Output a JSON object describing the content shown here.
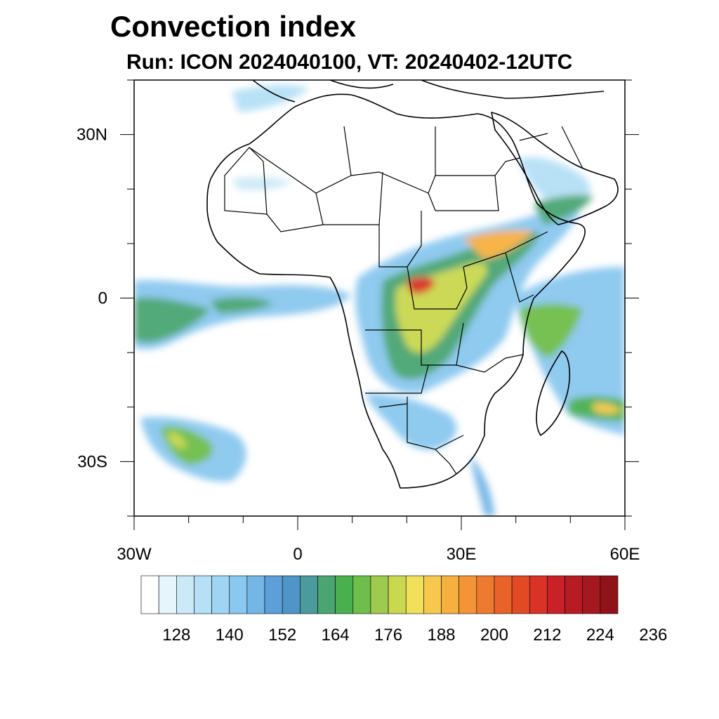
{
  "header": {
    "title": "Convection index",
    "subtitle": "Run: ICON 2024040100,  VT: 20240402-12UTC"
  },
  "map": {
    "lon_range": [
      -30,
      60
    ],
    "lat_range": [
      -40,
      40
    ],
    "lat_ticks": [
      {
        "value": 30,
        "label": "30N"
      },
      {
        "value": 0,
        "label": "0"
      },
      {
        "value": -30,
        "label": "30S"
      }
    ],
    "lon_ticks": [
      {
        "value": -30,
        "label": "30W"
      },
      {
        "value": 0,
        "label": "0"
      },
      {
        "value": 30,
        "label": "30E"
      },
      {
        "value": 60,
        "label": "60E"
      }
    ]
  },
  "colorbar": {
    "labels": [
      "128",
      "140",
      "152",
      "164",
      "176",
      "188",
      "200",
      "212",
      "224",
      "236"
    ],
    "colors": [
      "#ffffff",
      "#e6f4fb",
      "#cce9f7",
      "#b5e0f6",
      "#9fd5f3",
      "#8ac8ef",
      "#74b6e6",
      "#5d9fd8",
      "#4f95c8",
      "#4a9a9e",
      "#4aa572",
      "#4ab04f",
      "#6fbd4a",
      "#9ecb4d",
      "#c9d84f",
      "#f0e05a",
      "#f6c94e",
      "#f6b040",
      "#f49436",
      "#ee7a2f",
      "#e8622a",
      "#e24a26",
      "#d93226",
      "#c82128",
      "#b71b24",
      "#a4191f",
      "#8f1419"
    ]
  }
}
